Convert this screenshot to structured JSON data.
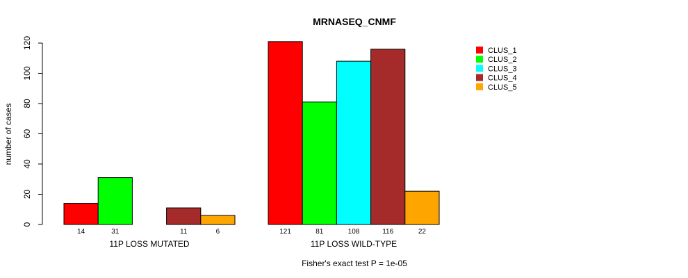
{
  "chart_data": {
    "type": "bar",
    "title": "MRNASEQ_CNMF",
    "ylabel": "number of cases",
    "ylim": [
      0,
      120
    ],
    "yticks": [
      0,
      20,
      40,
      60,
      80,
      100,
      120
    ],
    "groups": [
      {
        "label": "11P LOSS MUTATED",
        "values": [
          14,
          31,
          0,
          11,
          6
        ],
        "value_labels": [
          "14",
          "31",
          "",
          "11",
          "6"
        ]
      },
      {
        "label": "11P LOSS WILD-TYPE",
        "values": [
          121,
          81,
          108,
          116,
          22
        ],
        "value_labels": [
          "121",
          "81",
          "108",
          "116",
          "22"
        ]
      }
    ],
    "series": [
      {
        "name": "CLUS_1",
        "color": "#ff0000"
      },
      {
        "name": "CLUS_2",
        "color": "#00ff00"
      },
      {
        "name": "CLUS_3",
        "color": "#00ffff"
      },
      {
        "name": "CLUS_4",
        "color": "#a52a2a"
      },
      {
        "name": "CLUS_5",
        "color": "#ffa500"
      }
    ],
    "legend_position": "top-right",
    "footnote": "Fisher's exact test P = 1e-05"
  }
}
